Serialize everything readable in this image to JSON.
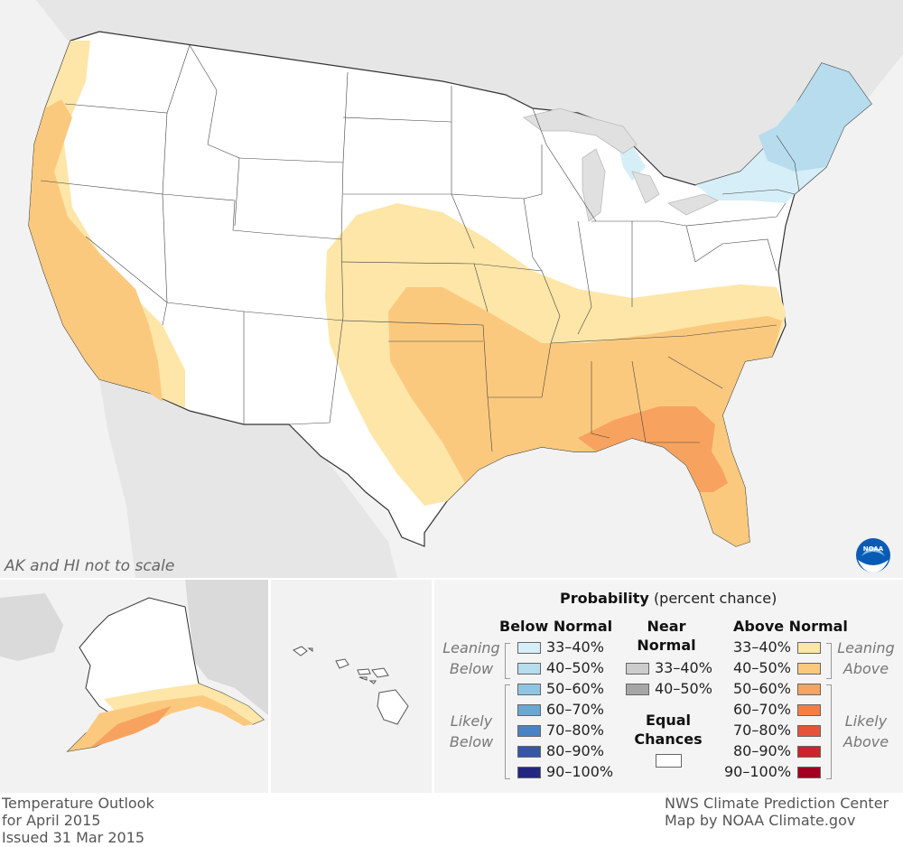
{
  "map": {
    "scale_note": "AK and HI not to scale",
    "logo_text": "NOAA"
  },
  "colors": {
    "land_outside": "#e8e8e8",
    "water": "#f2f2f2",
    "equal_chances": "#ffffff",
    "above_33_40": "#fde6a8",
    "above_40_50": "#fbc97e",
    "above_50_60": "#f7a35f",
    "above_60_70": "#f47f45",
    "above_70_80": "#e5533b",
    "above_80_90": "#cc2428",
    "above_90_100": "#a30021",
    "below_33_40": "#d6eef7",
    "below_40_50": "#b6dcee",
    "below_50_60": "#8fc5e3",
    "below_60_70": "#6aa8d4",
    "below_70_80": "#4a83c4",
    "below_80_90": "#3656ac",
    "below_90_100": "#23277f",
    "near_33_40": "#cccccc",
    "near_40_50": "#a6a6a6"
  },
  "legend": {
    "title": "Probability",
    "title_suffix": "(percent chance)",
    "below_header": "Below Normal",
    "near_header_line1": "Near",
    "near_header_line2": "Normal",
    "above_header": "Above Normal",
    "leaning_below_1": "Leaning",
    "leaning_below_2": "Below",
    "likely_below_1": "Likely",
    "likely_below_2": "Below",
    "leaning_above_1": "Leaning",
    "leaning_above_2": "Above",
    "likely_above_1": "Likely",
    "likely_above_2": "Above",
    "equal_1": "Equal",
    "equal_2": "Chances",
    "ranges": [
      "33–40%",
      "40–50%",
      "50–60%",
      "60–70%",
      "70–80%",
      "80–90%",
      "90–100%"
    ],
    "near_ranges": [
      "33–40%",
      "40–50%"
    ]
  },
  "footer": {
    "left_line1": "Temperature Outlook",
    "left_line2": "for April 2015",
    "left_line3": "Issued 31 Mar 2015",
    "right_line1": "NWS Climate Prediction Center",
    "right_line2": "Map by NOAA Climate.gov"
  }
}
